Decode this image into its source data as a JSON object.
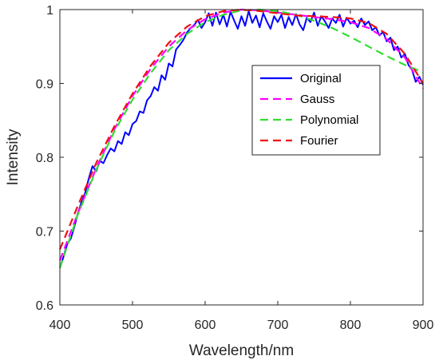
{
  "chart_data": {
    "type": "line",
    "title": "",
    "xlabel": "Wavelength/nm",
    "ylabel": "Intensity",
    "xlim": [
      400,
      900
    ],
    "ylim": [
      0.6,
      1.0
    ],
    "x_ticks": [
      "400",
      "500",
      "600",
      "700",
      "800",
      "900"
    ],
    "y_ticks": [
      "0.6",
      "0.7",
      "0.8",
      "0.9",
      "1"
    ],
    "grid": false,
    "legend_position": "top-right",
    "series": [
      {
        "name": "Original",
        "color": "#0000ff",
        "style": "solid",
        "x": [
          400,
          405,
          410,
          415,
          420,
          425,
          430,
          435,
          440,
          445,
          450,
          455,
          460,
          465,
          470,
          475,
          480,
          485,
          490,
          495,
          500,
          505,
          510,
          515,
          520,
          525,
          530,
          535,
          540,
          545,
          550,
          555,
          560,
          565,
          570,
          575,
          580,
          585,
          590,
          595,
          600,
          605,
          610,
          615,
          620,
          625,
          630,
          635,
          640,
          645,
          650,
          655,
          660,
          665,
          670,
          675,
          680,
          685,
          690,
          695,
          700,
          705,
          710,
          715,
          720,
          725,
          730,
          735,
          740,
          745,
          750,
          755,
          760,
          765,
          770,
          775,
          780,
          785,
          790,
          795,
          800,
          805,
          810,
          815,
          820,
          825,
          830,
          835,
          840,
          845,
          850,
          855,
          860,
          865,
          870,
          875,
          880,
          885,
          890,
          895,
          900
        ],
        "values": [
          0.65,
          0.665,
          0.682,
          0.69,
          0.706,
          0.725,
          0.74,
          0.752,
          0.772,
          0.788,
          0.781,
          0.795,
          0.792,
          0.803,
          0.812,
          0.808,
          0.822,
          0.818,
          0.834,
          0.83,
          0.845,
          0.849,
          0.862,
          0.86,
          0.877,
          0.883,
          0.895,
          0.89,
          0.911,
          0.905,
          0.927,
          0.923,
          0.946,
          0.952,
          0.959,
          0.969,
          0.975,
          0.979,
          0.986,
          0.975,
          0.983,
          0.995,
          0.978,
          0.996,
          0.98,
          0.993,
          0.977,
          0.997,
          0.985,
          0.974,
          0.991,
          0.978,
          0.998,
          0.982,
          0.992,
          0.976,
          0.995,
          0.984,
          0.974,
          0.991,
          0.983,
          0.993,
          0.975,
          0.99,
          0.979,
          0.994,
          0.98,
          0.972,
          0.989,
          0.983,
          0.996,
          0.978,
          0.991,
          0.984,
          0.975,
          0.988,
          0.982,
          0.993,
          0.977,
          0.989,
          0.981,
          0.985,
          0.976,
          0.988,
          0.979,
          0.984,
          0.972,
          0.976,
          0.965,
          0.97,
          0.957,
          0.962,
          0.945,
          0.95,
          0.935,
          0.94,
          0.925,
          0.918,
          0.902,
          0.909,
          0.898
        ]
      },
      {
        "name": "Gauss",
        "color": "#ff00ff",
        "style": "dashed",
        "x": [
          400,
          425,
          450,
          475,
          500,
          525,
          550,
          575,
          600,
          625,
          650,
          675,
          700,
          725,
          750,
          775,
          800,
          825,
          850,
          875,
          900
        ],
        "values": [
          0.66,
          0.725,
          0.785,
          0.838,
          0.883,
          0.92,
          0.95,
          0.972,
          0.987,
          0.996,
          1.0,
          0.999,
          0.996,
          0.993,
          0.99,
          0.987,
          0.983,
          0.975,
          0.96,
          0.935,
          0.893
        ]
      },
      {
        "name": "Polynomial",
        "color": "#33dd33",
        "style": "dashed",
        "x": [
          400,
          425,
          450,
          475,
          500,
          525,
          550,
          575,
          600,
          625,
          650,
          675,
          700,
          725,
          750,
          775,
          800,
          825,
          850,
          875,
          900
        ],
        "values": [
          0.65,
          0.723,
          0.783,
          0.835,
          0.878,
          0.914,
          0.945,
          0.967,
          0.983,
          0.993,
          0.999,
          1.0,
          0.998,
          0.993,
          0.985,
          0.975,
          0.963,
          0.95,
          0.937,
          0.925,
          0.915
        ]
      },
      {
        "name": "Fourier",
        "color": "#ee1111",
        "style": "dashed",
        "x": [
          400,
          425,
          450,
          475,
          500,
          525,
          550,
          575,
          600,
          625,
          650,
          675,
          700,
          725,
          750,
          775,
          800,
          825,
          850,
          875,
          900
        ],
        "values": [
          0.675,
          0.735,
          0.792,
          0.842,
          0.886,
          0.924,
          0.955,
          0.977,
          0.991,
          0.998,
          1.0,
          0.998,
          0.995,
          0.992,
          0.991,
          0.99,
          0.988,
          0.982,
          0.967,
          0.94,
          0.9
        ]
      }
    ]
  }
}
